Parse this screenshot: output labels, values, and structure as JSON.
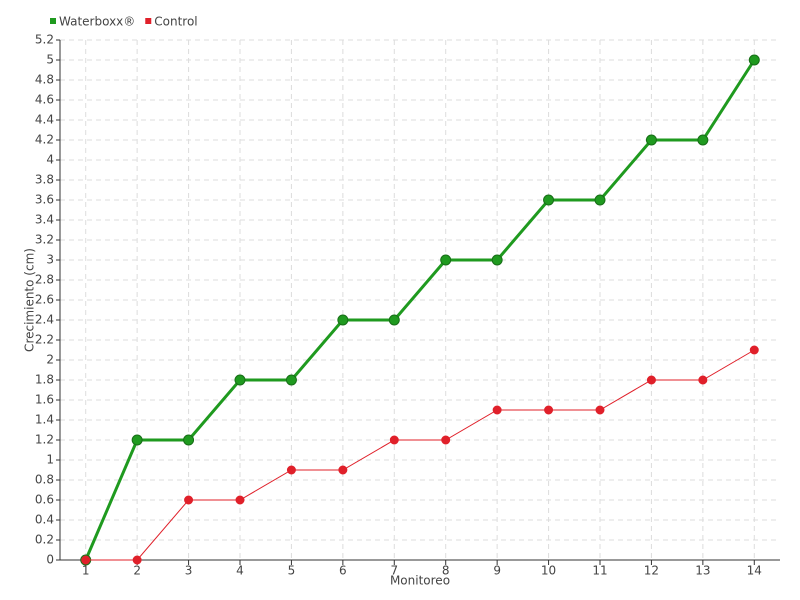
{
  "chart_data": {
    "type": "line",
    "x_label": "Monitoreo",
    "y_label": "Crecimiento (cm)",
    "categories": [
      "1",
      "2",
      "3",
      "4",
      "5",
      "6",
      "7",
      "8",
      "9",
      "10",
      "11",
      "12",
      "13",
      "14"
    ],
    "series": [
      {
        "name": "Waterboxx®",
        "color": "#1f9a1f",
        "values": [
          0,
          1.2,
          1.2,
          1.8,
          1.8,
          2.4,
          2.4,
          3,
          3,
          3.6,
          3.6,
          4.2,
          4.2,
          5
        ]
      },
      {
        "name": "Control",
        "color": "#e0202a",
        "values": [
          0,
          0,
          0.6,
          0.6,
          0.9,
          0.9,
          1.2,
          1.2,
          1.5,
          1.5,
          1.5,
          1.8,
          1.8,
          2.1
        ]
      }
    ],
    "ylim": [
      0,
      5.2
    ],
    "yticks": [
      0,
      0.2,
      0.4,
      0.6,
      0.8,
      1,
      1.2,
      1.4,
      1.6,
      1.8,
      2,
      2.2,
      2.4,
      2.6,
      2.8,
      3,
      3.2,
      3.4,
      3.6,
      3.8,
      4,
      4.2,
      4.4,
      4.6,
      4.8,
      5,
      5.2
    ],
    "grid": true,
    "legend": "top-left"
  }
}
